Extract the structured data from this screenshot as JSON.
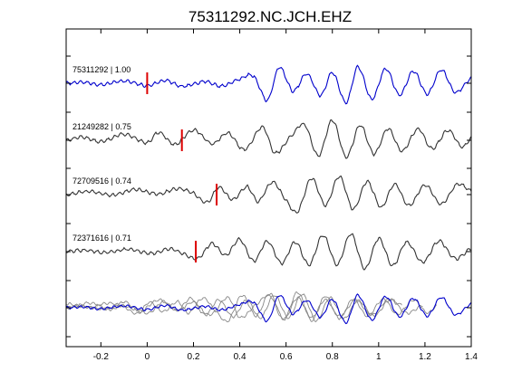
{
  "chart_data": {
    "type": "line",
    "title": "75311292.NC.JCH.EHZ",
    "xlabel": "",
    "ylabel": "",
    "xlim": [
      -0.35,
      1.4
    ],
    "grid": false,
    "x_ticks": [
      -0.2,
      0,
      0.2,
      0.4,
      0.6,
      0.8,
      1,
      1.2,
      1.4
    ],
    "x_tick_labels": [
      "-0.2",
      "0",
      "0.2",
      "0.4",
      "0.6",
      "0.8",
      "1",
      "1.2",
      "1.4"
    ],
    "colors": {
      "template": "#0000cc",
      "match": "#333333",
      "overlay_match": "#888888",
      "pick": "#dd0000",
      "axes": "#000000"
    },
    "traces": [
      {
        "label": "75311292 | 1.00",
        "id": "75311292",
        "cc": 1.0,
        "pick": 0.0,
        "color": "template",
        "seed": 7,
        "knots": [
          [
            -0.35,
            0.0
          ],
          [
            -0.27,
            0.04
          ],
          [
            -0.2,
            -0.06
          ],
          [
            -0.1,
            0.1
          ],
          [
            0.0,
            -0.1
          ],
          [
            0.08,
            0.12
          ],
          [
            0.15,
            -0.14
          ],
          [
            0.25,
            0.08
          ],
          [
            0.32,
            -0.12
          ],
          [
            0.4,
            0.18
          ],
          [
            0.46,
            0.3
          ],
          [
            0.52,
            -0.72
          ],
          [
            0.57,
            0.68
          ],
          [
            0.63,
            -0.34
          ],
          [
            0.69,
            0.4
          ],
          [
            0.75,
            -0.52
          ],
          [
            0.8,
            0.46
          ],
          [
            0.86,
            -0.82
          ],
          [
            0.91,
            0.7
          ],
          [
            0.97,
            -0.68
          ],
          [
            1.03,
            0.62
          ],
          [
            1.09,
            -0.5
          ],
          [
            1.15,
            0.52
          ],
          [
            1.21,
            -0.46
          ],
          [
            1.27,
            0.58
          ],
          [
            1.33,
            -0.38
          ],
          [
            1.4,
            0.22
          ]
        ]
      },
      {
        "label": "21249282 | 0.75",
        "id": "21249282",
        "cc": 0.75,
        "pick": 0.15,
        "color": "match",
        "seed": 13,
        "knots": [
          [
            -0.35,
            0.0
          ],
          [
            -0.28,
            0.14
          ],
          [
            -0.2,
            -0.06
          ],
          [
            -0.1,
            0.26
          ],
          [
            0.0,
            -0.1
          ],
          [
            0.05,
            0.34
          ],
          [
            0.12,
            -0.18
          ],
          [
            0.2,
            0.44
          ],
          [
            0.28,
            -0.14
          ],
          [
            0.35,
            0.3
          ],
          [
            0.42,
            -0.4
          ],
          [
            0.5,
            0.56
          ],
          [
            0.55,
            -0.54
          ],
          [
            0.62,
            0.16
          ],
          [
            0.68,
            0.66
          ],
          [
            0.74,
            -0.66
          ],
          [
            0.8,
            0.86
          ],
          [
            0.86,
            -0.72
          ],
          [
            0.92,
            0.64
          ],
          [
            0.98,
            -0.58
          ],
          [
            1.04,
            0.5
          ],
          [
            1.1,
            -0.46
          ],
          [
            1.17,
            0.48
          ],
          [
            1.23,
            -0.36
          ],
          [
            1.3,
            0.42
          ],
          [
            1.36,
            -0.28
          ],
          [
            1.4,
            0.1
          ]
        ]
      },
      {
        "label": "72709516 | 0.74",
        "id": "72709516",
        "cc": 0.74,
        "pick": 0.3,
        "color": "match",
        "seed": 21,
        "knots": [
          [
            -0.35,
            0.0
          ],
          [
            -0.25,
            0.14
          ],
          [
            -0.15,
            -0.02
          ],
          [
            -0.05,
            0.22
          ],
          [
            0.05,
            0.02
          ],
          [
            0.13,
            0.26
          ],
          [
            0.2,
            0.06
          ],
          [
            0.26,
            -0.34
          ],
          [
            0.31,
            0.32
          ],
          [
            0.37,
            -0.22
          ],
          [
            0.43,
            0.34
          ],
          [
            0.48,
            -0.28
          ],
          [
            0.54,
            0.54
          ],
          [
            0.6,
            -0.24
          ],
          [
            0.65,
            -0.72
          ],
          [
            0.71,
            0.7
          ],
          [
            0.77,
            -0.46
          ],
          [
            0.83,
            0.78
          ],
          [
            0.89,
            -0.62
          ],
          [
            0.95,
            0.56
          ],
          [
            1.01,
            -0.54
          ],
          [
            1.07,
            0.44
          ],
          [
            1.13,
            -0.48
          ],
          [
            1.2,
            0.4
          ],
          [
            1.27,
            -0.4
          ],
          [
            1.34,
            0.44
          ],
          [
            1.4,
            0.16
          ]
        ]
      },
      {
        "label": "72371616 | 0.71",
        "id": "72371616",
        "cc": 0.71,
        "pick": 0.21,
        "color": "match",
        "seed": 29,
        "knots": [
          [
            -0.35,
            0.0
          ],
          [
            -0.27,
            0.06
          ],
          [
            -0.18,
            -0.04
          ],
          [
            -0.08,
            0.1
          ],
          [
            0.02,
            -0.08
          ],
          [
            0.1,
            0.12
          ],
          [
            0.16,
            -0.1
          ],
          [
            0.22,
            -0.3
          ],
          [
            0.28,
            0.34
          ],
          [
            0.34,
            -0.16
          ],
          [
            0.4,
            0.52
          ],
          [
            0.46,
            -0.4
          ],
          [
            0.52,
            0.44
          ],
          [
            0.58,
            -0.5
          ],
          [
            0.64,
            0.4
          ],
          [
            0.7,
            -0.56
          ],
          [
            0.76,
            0.7
          ],
          [
            0.82,
            -0.56
          ],
          [
            0.88,
            0.76
          ],
          [
            0.94,
            -0.72
          ],
          [
            1.0,
            0.56
          ],
          [
            1.06,
            -0.6
          ],
          [
            1.12,
            0.4
          ],
          [
            1.19,
            -0.44
          ],
          [
            1.26,
            0.44
          ],
          [
            1.33,
            -0.3
          ],
          [
            1.4,
            0.14
          ]
        ]
      }
    ]
  }
}
